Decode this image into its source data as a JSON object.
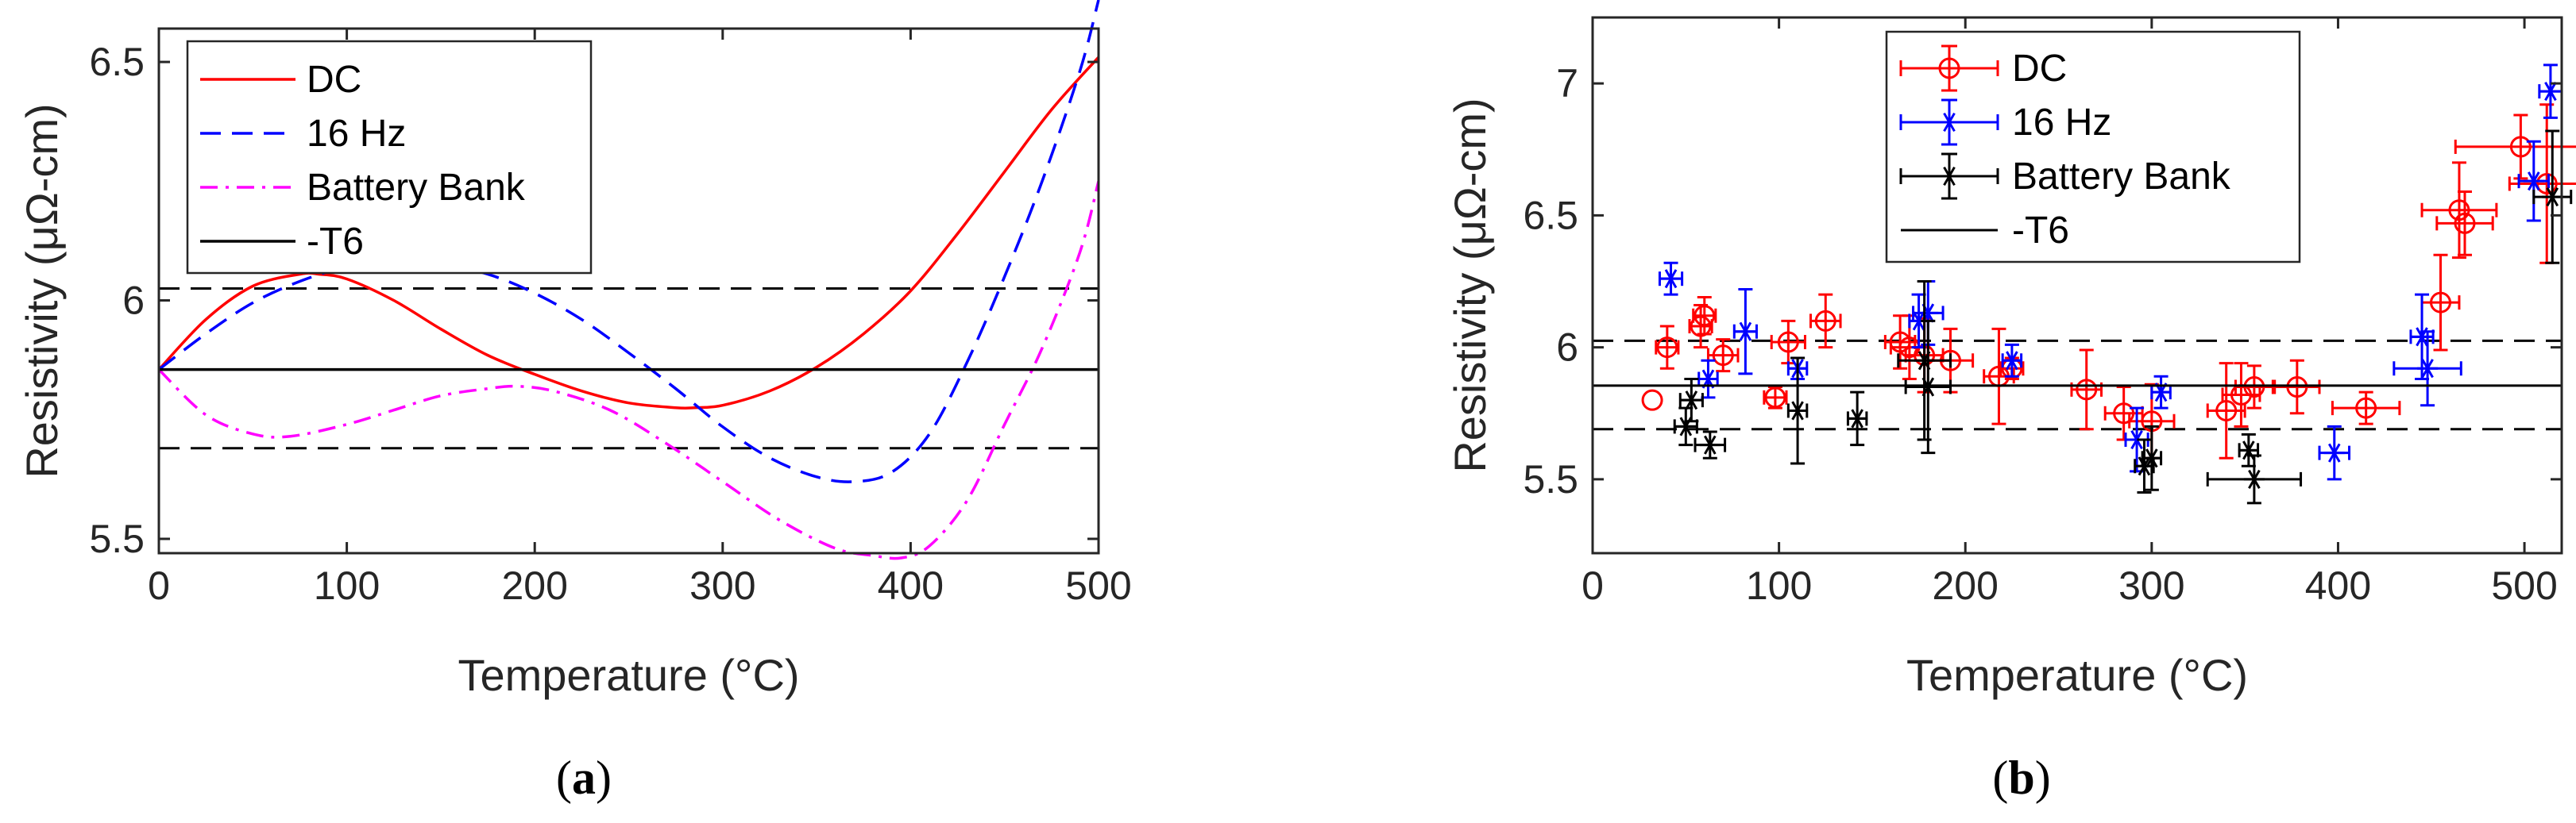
{
  "panel_labels": [
    "(a)",
    "(b)"
  ],
  "colors": {
    "dc": "#ff0000",
    "hz16": "#0000ff",
    "battery": "#ff00ff",
    "battery_b": "#000000",
    "t6": "#000000",
    "axis": "#262626"
  },
  "chart_data": [
    {
      "type": "line",
      "panel": "(a)",
      "xlabel": "Temperature (°C)",
      "ylabel": "Resistivity (μΩ-cm)",
      "xlim": [
        0,
        500
      ],
      "ylim": [
        5.47,
        6.57
      ],
      "xticks": [
        0,
        100,
        200,
        300,
        400,
        500
      ],
      "yticks": [
        5.5,
        6,
        6.5
      ],
      "legend_position": "top-left",
      "series": [
        {
          "name": "DC",
          "style": "solid",
          "color": "#ff0000",
          "x": [
            0,
            25,
            50,
            75,
            85,
            100,
            125,
            150,
            175,
            200,
            225,
            250,
            275,
            285,
            300,
            325,
            350,
            375,
            400,
            425,
            450,
            475,
            500
          ],
          "y": [
            5.855,
            5.96,
            6.03,
            6.055,
            6.055,
            6.045,
            6.0,
            5.94,
            5.885,
            5.845,
            5.81,
            5.785,
            5.775,
            5.775,
            5.78,
            5.81,
            5.86,
            5.93,
            6.02,
            6.14,
            6.27,
            6.4,
            6.51
          ]
        },
        {
          "name": "16 Hz",
          "style": "dashed",
          "color": "#0000ff",
          "x": [
            0,
            25,
            50,
            75,
            100,
            125,
            150,
            175,
            200,
            225,
            250,
            275,
            300,
            325,
            350,
            370,
            390,
            410,
            430,
            450,
            470,
            490,
            500
          ],
          "y": [
            5.855,
            5.93,
            5.995,
            6.04,
            6.07,
            6.08,
            6.075,
            6.055,
            6.015,
            5.96,
            5.89,
            5.815,
            5.735,
            5.67,
            5.63,
            5.62,
            5.64,
            5.72,
            5.87,
            6.05,
            6.25,
            6.48,
            6.63
          ]
        },
        {
          "name": "Battery Bank",
          "style": "dashdot",
          "color": "#ff00ff",
          "x": [
            0,
            25,
            50,
            70,
            100,
            125,
            150,
            175,
            190,
            210,
            240,
            270,
            300,
            330,
            360,
            380,
            395,
            410,
            430,
            450,
            470,
            490,
            500
          ],
          "y": [
            5.855,
            5.76,
            5.72,
            5.715,
            5.74,
            5.77,
            5.8,
            5.815,
            5.82,
            5.81,
            5.77,
            5.7,
            5.62,
            5.54,
            5.48,
            5.465,
            5.46,
            5.485,
            5.58,
            5.74,
            5.9,
            6.1,
            6.25
          ]
        },
        {
          "name": "-T6",
          "style": "solid",
          "color": "#000000",
          "x": [
            0,
            500
          ],
          "y": [
            5.855,
            5.855
          ]
        }
      ],
      "reference_lines": [
        {
          "style": "dashed",
          "color": "#000000",
          "y": 6.025
        },
        {
          "style": "dashed",
          "color": "#000000",
          "y": 5.69
        }
      ]
    },
    {
      "type": "scatter",
      "panel": "(b)",
      "xlabel": "Temperature (°C)",
      "ylabel": "Resistivity (μΩ-cm)",
      "xlim": [
        0,
        520
      ],
      "ylim": [
        5.22,
        7.25
      ],
      "xticks": [
        0,
        100,
        200,
        300,
        400,
        500
      ],
      "yticks": [
        5.5,
        6,
        6.5,
        7
      ],
      "legend_position": "top-center",
      "series": [
        {
          "name": "DC",
          "marker": "circle",
          "color": "#ff0000",
          "points": [
            [
              32,
              5.8,
              0,
              0
            ],
            [
              40,
              6.0,
              6,
              0.08
            ],
            [
              58,
              6.08,
              6,
              0.08
            ],
            [
              60,
              6.12,
              6,
              0.07
            ],
            [
              70,
              5.97,
              8,
              0.06
            ],
            [
              98,
              5.81,
              6,
              0.04
            ],
            [
              105,
              6.02,
              9,
              0.08
            ],
            [
              125,
              6.1,
              8,
              0.1
            ],
            [
              165,
              6.02,
              8,
              0.1
            ],
            [
              170,
              6.0,
              10,
              0.12
            ],
            [
              178,
              5.97,
              10,
              0.14
            ],
            [
              192,
              5.95,
              12,
              0.12
            ],
            [
              218,
              5.89,
              8,
              0.18
            ],
            [
              225,
              5.92,
              6,
              0.04
            ],
            [
              265,
              5.84,
              8,
              0.15
            ],
            [
              285,
              5.75,
              10,
              0.1
            ],
            [
              300,
              5.72,
              12,
              0.14
            ],
            [
              340,
              5.76,
              10,
              0.18
            ],
            [
              348,
              5.82,
              10,
              0.12
            ],
            [
              355,
              5.85,
              10,
              0.08
            ],
            [
              378,
              5.85,
              12,
              0.1
            ],
            [
              415,
              5.77,
              18,
              0.06
            ],
            [
              455,
              6.17,
              10,
              0.18
            ],
            [
              465,
              6.52,
              20,
              0.18
            ],
            [
              468,
              6.47,
              15,
              0.12
            ],
            [
              498,
              6.76,
              35,
              0.12
            ],
            [
              512,
              6.62,
              20,
              0.3
            ]
          ]
        },
        {
          "name": "16 Hz",
          "marker": "asterisk",
          "color": "#0000ff",
          "points": [
            [
              42,
              6.26,
              6,
              0.06
            ],
            [
              62,
              5.88,
              5,
              0.07
            ],
            [
              82,
              6.06,
              6,
              0.16
            ],
            [
              110,
              5.92,
              5,
              0.04
            ],
            [
              175,
              6.1,
              5,
              0.1
            ],
            [
              180,
              6.13,
              8,
              0.12
            ],
            [
              225,
              5.95,
              5,
              0.06
            ],
            [
              292,
              5.65,
              6,
              0.12
            ],
            [
              305,
              5.83,
              5,
              0.06
            ],
            [
              398,
              5.6,
              8,
              0.1
            ],
            [
              445,
              6.04,
              6,
              0.16
            ],
            [
              448,
              5.92,
              18,
              0.14
            ],
            [
              505,
              6.63,
              8,
              0.15
            ],
            [
              514,
              6.97,
              6,
              0.1
            ]
          ]
        },
        {
          "name": "Battery Bank",
          "marker": "asterisk",
          "color": "#000000",
          "points": [
            [
              50,
              5.7,
              6,
              0.07
            ],
            [
              53,
              5.8,
              6,
              0.08
            ],
            [
              63,
              5.63,
              8,
              0.05
            ],
            [
              110,
              5.76,
              5,
              0.2
            ],
            [
              142,
              5.73,
              5,
              0.1
            ],
            [
              180,
              5.85,
              12,
              0.25
            ],
            [
              178,
              5.95,
              14,
              0.3
            ],
            [
              296,
              5.55,
              5,
              0.1
            ],
            [
              300,
              5.58,
              5,
              0.12
            ],
            [
              352,
              5.61,
              5,
              0.06
            ],
            [
              355,
              5.5,
              25,
              0.09
            ],
            [
              515,
              6.57,
              10,
              0.25
            ]
          ]
        },
        {
          "name": "-T6",
          "marker": "line",
          "color": "#000000",
          "x": [
            0,
            520
          ],
          "y": [
            5.855,
            5.855
          ]
        }
      ],
      "reference_lines": [
        {
          "style": "dashed",
          "color": "#000000",
          "y": 6.025
        },
        {
          "style": "dashed",
          "color": "#000000",
          "y": 5.69
        }
      ]
    }
  ]
}
